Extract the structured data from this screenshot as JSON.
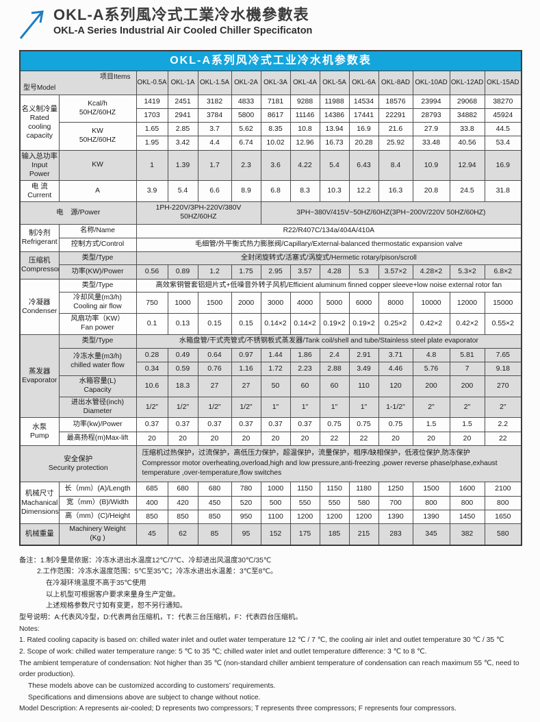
{
  "header": {
    "title_cn": "OKL-A系列風冷式工業冷水機參數表",
    "title_en": "OKL-A Series Industrial Air Cooled Chiller Specificaton",
    "logo_color": "#1b7ec2"
  },
  "accent_blue": "#14a5dd",
  "table": {
    "title": "OKL-A系列风冷式工业冷水机参数表",
    "corner": {
      "model": "型号Model",
      "items": "项目Items"
    },
    "models": [
      "OKL-0.5A",
      "OKL-1A",
      "OKL-1.5A",
      "OKL-2A",
      "OKL-3A",
      "OKL-4A",
      "OKL-5A",
      "OKL-6A",
      "OKL-8AD",
      "OKL-10AD",
      "OKL-12AD",
      "OKL-15AD"
    ],
    "rows": [
      {
        "shade": true,
        "cells": [
          {
            "diag": true,
            "c": 2
          },
          {
            "models": true
          }
        ]
      },
      {
        "shade": false,
        "cells": [
          {
            "t": "名义制冷量\nRated\ncooling\ncapacity",
            "r": 4,
            "cls": "cat"
          },
          {
            "t": "Kcal/h\n50HZ/60HZ",
            "r": 2,
            "cls": "sub"
          },
          {
            "vals": [
              "1419",
              "2451",
              "3182",
              "4833",
              "7181",
              "9288",
              "11988",
              "14534",
              "18576",
              "23994",
              "29068",
              "38270"
            ]
          }
        ]
      },
      {
        "shade": false,
        "cells": [
          {
            "vals": [
              "1703",
              "2941",
              "3784",
              "5800",
              "8617",
              "11146",
              "14386",
              "17441",
              "22291",
              "28793",
              "34882",
              "45924"
            ]
          }
        ]
      },
      {
        "shade": false,
        "cells": [
          {
            "t": "KW\n50HZ/60HZ",
            "r": 2,
            "cls": "sub"
          },
          {
            "vals": [
              "1.65",
              "2.85",
              "3.7",
              "5.62",
              "8.35",
              "10.8",
              "13.94",
              "16.9",
              "21.6",
              "27.9",
              "33.8",
              "44.5"
            ]
          }
        ]
      },
      {
        "shade": false,
        "cells": [
          {
            "vals": [
              "1.95",
              "3.42",
              "4.4",
              "6.74",
              "10.02",
              "12.96",
              "16.73",
              "20.28",
              "25.92",
              "33.48",
              "40.56",
              "53.4"
            ]
          }
        ]
      },
      {
        "shade": true,
        "cells": [
          {
            "t": "输入总功率\nInput Power",
            "cls": "cat"
          },
          {
            "t": "KW",
            "cls": "sub"
          },
          {
            "vals": [
              "1",
              "1.39",
              "1.7",
              "2.3",
              "3.6",
              "4.22",
              "5.4",
              "6.43",
              "8.4",
              "10.9",
              "12.94",
              "16.9"
            ]
          }
        ]
      },
      {
        "shade": false,
        "cells": [
          {
            "t": "电 流\nCurrent",
            "cls": "cat"
          },
          {
            "t": "A",
            "cls": "sub"
          },
          {
            "vals": [
              "3.9",
              "5.4",
              "6.6",
              "8.9",
              "6.8",
              "8.3",
              "10.3",
              "12.2",
              "16.3",
              "20.8",
              "24.5",
              "31.8"
            ]
          }
        ]
      },
      {
        "shade": true,
        "cells": [
          {
            "t": "电　源/Power",
            "c": 2,
            "cls": "cat"
          },
          {
            "t": "1PH-220V/3PH-220V/380V 50HZ/60HZ",
            "c": 4,
            "cls": "span"
          },
          {
            "t": "3PH~380V/415V~50HZ/60HZ(3PH~200V/220V  50HZ/60HZ)",
            "c": 8,
            "cls": "span"
          }
        ]
      },
      {
        "shade": false,
        "cells": [
          {
            "t": "制冷剂\nRefrigerant",
            "r": 2,
            "cls": "cat"
          },
          {
            "t": "名称/Name",
            "cls": "sub"
          },
          {
            "t": "R22/R407C/134a/404A/410A",
            "c": 12,
            "cls": "span"
          }
        ]
      },
      {
        "shade": false,
        "cells": [
          {
            "t": "控制方式/Control",
            "cls": "sub"
          },
          {
            "t": "毛细管/外平衡式热力膨胀阀/Capillary/External-balanced thermostatic expansion valve",
            "c": 12,
            "cls": "span"
          }
        ]
      },
      {
        "shade": true,
        "cells": [
          {
            "t": "压缩机\nCompressor",
            "r": 2,
            "cls": "cat"
          },
          {
            "t": "类型/Type",
            "cls": "sub"
          },
          {
            "t": "全封闭旋转式/活塞式/涡旋式/Hermetic rotary/pison/scroll",
            "c": 12,
            "cls": "span"
          }
        ]
      },
      {
        "shade": true,
        "cells": [
          {
            "t": "功率(KW)/Power",
            "cls": "sub"
          },
          {
            "vals": [
              "0.56",
              "0.89",
              "1.2",
              "1.75",
              "2.95",
              "3.57",
              "4.28",
              "5.3",
              "3.57×2",
              "4.28×2",
              "5.3×2",
              "6.8×2"
            ]
          }
        ]
      },
      {
        "shade": false,
        "cells": [
          {
            "t": "冷凝器\nCondenser",
            "r": 3,
            "cls": "cat"
          },
          {
            "t": "类型/Type",
            "cls": "sub"
          },
          {
            "t": "高效紫铜管套铝翅片式+低噪音外转子风机/Efficient aluminum finned copper sleeve+low noise external rotor fan",
            "c": 12,
            "cls": "span"
          }
        ]
      },
      {
        "shade": false,
        "cells": [
          {
            "t": "冷却风量(m3/h)\nCooling air flow",
            "cls": "sub"
          },
          {
            "vals": [
              "750",
              "1000",
              "1500",
              "2000",
              "3000",
              "4000",
              "5000",
              "6000",
              "8000",
              "10000",
              "12000",
              "15000"
            ]
          }
        ]
      },
      {
        "shade": false,
        "cells": [
          {
            "t": "风扇功率（KW）\nFan power",
            "cls": "sub"
          },
          {
            "vals": [
              "0.1",
              "0.13",
              "0.15",
              "0.15",
              "0.14×2",
              "0.14×2",
              "0.19×2",
              "0.19×2",
              "0.25×2",
              "0.42×2",
              "0.42×2",
              "0.55×2"
            ]
          }
        ]
      },
      {
        "shade": true,
        "cells": [
          {
            "t": "蒸发器\nEvaporator",
            "r": 5,
            "cls": "cat"
          },
          {
            "t": "类型/Type",
            "cls": "sub"
          },
          {
            "t": "水箱盘管/干式壳管式/不锈钢板式蒸发器/Tank coil/shell and tube/Stainless steel plate evaporator",
            "c": 12,
            "cls": "span"
          }
        ]
      },
      {
        "shade": true,
        "cells": [
          {
            "t": "冷冻水量(m3/h)\nchilled water flow",
            "r": 2,
            "cls": "sub"
          },
          {
            "vals": [
              "0.28",
              "0.49",
              "0.64",
              "0.97",
              "1.44",
              "1.86",
              "2.4",
              "2.91",
              "3.71",
              "4.8",
              "5.81",
              "7.65"
            ]
          }
        ]
      },
      {
        "shade": true,
        "cells": [
          {
            "vals": [
              "0.34",
              "0.59",
              "0.76",
              "1.16",
              "1.72",
              "2.23",
              "2.88",
              "3.49",
              "4.46",
              "5.76",
              "7",
              "9.18"
            ]
          }
        ]
      },
      {
        "shade": true,
        "cells": [
          {
            "t": "水箱容量(L)\nCapacity",
            "cls": "sub"
          },
          {
            "vals": [
              "10.6",
              "18.3",
              "27",
              "27",
              "50",
              "60",
              "60",
              "110",
              "120",
              "200",
              "200",
              "270"
            ]
          }
        ]
      },
      {
        "shade": true,
        "cells": [
          {
            "t": "进出水管径(inch)\nDiameter",
            "cls": "sub"
          },
          {
            "vals": [
              "1/2\"",
              "1/2\"",
              "1/2\"",
              "1/2\"",
              "1\"",
              "1\"",
              "1\"",
              "1\"",
              "1-1/2\"",
              "2\"",
              "2\"",
              "2\""
            ]
          }
        ]
      },
      {
        "shade": false,
        "cells": [
          {
            "t": "水泵\nPump",
            "r": 2,
            "cls": "cat"
          },
          {
            "t": "功率(kw)/Power",
            "cls": "sub"
          },
          {
            "vals": [
              "0.37",
              "0.37",
              "0.37",
              "0.37",
              "0.37",
              "0.37",
              "0.75",
              "0.75",
              "0.75",
              "1.5",
              "1.5",
              "2.2"
            ]
          }
        ]
      },
      {
        "shade": false,
        "cells": [
          {
            "t": "最高扬程(m)Max-lift",
            "cls": "sub"
          },
          {
            "vals": [
              "20",
              "20",
              "20",
              "20",
              "20",
              "20",
              "22",
              "22",
              "20",
              "20",
              "20",
              "22"
            ]
          }
        ]
      },
      {
        "shade": true,
        "cells": [
          {
            "t": "安全保护\nSecurity protection",
            "c": 2,
            "cls": "cat"
          },
          {
            "t": "压缩机过热保护，过流保护，高低压力保护，超温保护，流量保护，相序/缺相保护，低液位保护,防冻保护\nCompressor motor overheating,overload,high and low pressure,anti-freezing ,power reverse phase/phase,exhaust temperature ,over-temperature,flow switches",
            "c": 12,
            "cls": "left"
          }
        ]
      },
      {
        "shade": false,
        "cells": [
          {
            "t": "机械尺寸\nMachanical\nDimensions",
            "r": 3,
            "cls": "cat"
          },
          {
            "t": "长（mm）(A)/Length",
            "cls": "sub"
          },
          {
            "vals": [
              "685",
              "680",
              "680",
              "780",
              "1000",
              "1150",
              "1150",
              "1180",
              "1250",
              "1500",
              "1600",
              "2100"
            ]
          }
        ]
      },
      {
        "shade": false,
        "cells": [
          {
            "t": "宽（mm）(B)/Width",
            "cls": "sub"
          },
          {
            "vals": [
              "400",
              "420",
              "450",
              "520",
              "500",
              "550",
              "550",
              "580",
              "700",
              "800",
              "800",
              "800"
            ]
          }
        ]
      },
      {
        "shade": false,
        "cells": [
          {
            "t": "高（mm）(C)/Height",
            "cls": "sub"
          },
          {
            "vals": [
              "850",
              "850",
              "850",
              "950",
              "1100",
              "1200",
              "1200",
              "1200",
              "1390",
              "1390",
              "1450",
              "1650"
            ]
          }
        ]
      },
      {
        "shade": true,
        "cells": [
          {
            "t": "机械重量",
            "cls": "cat"
          },
          {
            "t": "Machinery Weight\n(Kg )",
            "cls": "sub"
          },
          {
            "vals": [
              "45",
              "62",
              "85",
              "95",
              "152",
              "175",
              "185",
              "215",
              "283",
              "345",
              "382",
              "580"
            ]
          }
        ]
      }
    ]
  },
  "notes": [
    {
      "t": "备注：1.制冷量是依据：冷冻水进出水温度12℃/7℃、冷却进出风温度30℃/35℃",
      "ind": 0
    },
    {
      "t": "2.工作范围：冷冻水温度范围：5℃至35℃；冷冻水进出水温差：3℃至8℃。",
      "ind": 2
    },
    {
      "t": "在冷凝环境温度不高于35℃使用",
      "ind": 3
    },
    {
      "t": "以上机型可根据客户要求来量身生产定做。",
      "ind": 3
    },
    {
      "t": "上述规格参数尺寸如有变更，恕不另行通知。",
      "ind": 3
    },
    {
      "t": "型号说明：A:代表风冷型，D:代表两台压缩机，T：代表三台压缩机，F：代表四台压缩机。",
      "ind": 0
    },
    {
      "t": "Notes:",
      "ind": 0
    },
    {
      "t": "1. Rated cooling capacity is based on: chilled water inlet and outlet water temperature 12 ℃ / 7 ℃, the cooling air inlet and outlet temperature 30 ℃ / 35 ℃",
      "ind": 0
    },
    {
      "t": "2. Scope of work: chilled water temperature range: 5 ℃ to 35 ℃; chilled water inlet and outlet temperature difference: 3 ℃ to 8 ℃.",
      "ind": 0
    },
    {
      "t": "The ambient temperature of condensation: Not higher than 35 ℃ (non-standard chiller ambient temperature of condensation can reach maximum 55 ℃, need to order production).",
      "ind": 0
    },
    {
      "t": "These models above can be customized according to customers’  requirements.",
      "ind": 1
    },
    {
      "t": "Specifications and dimensions above are subject to change without notice.",
      "ind": 1
    },
    {
      "t": "Model Description: A represents air-cooled; D represents two compressors; T represents three compressors; F represents four compressors.",
      "ind": 0
    }
  ]
}
